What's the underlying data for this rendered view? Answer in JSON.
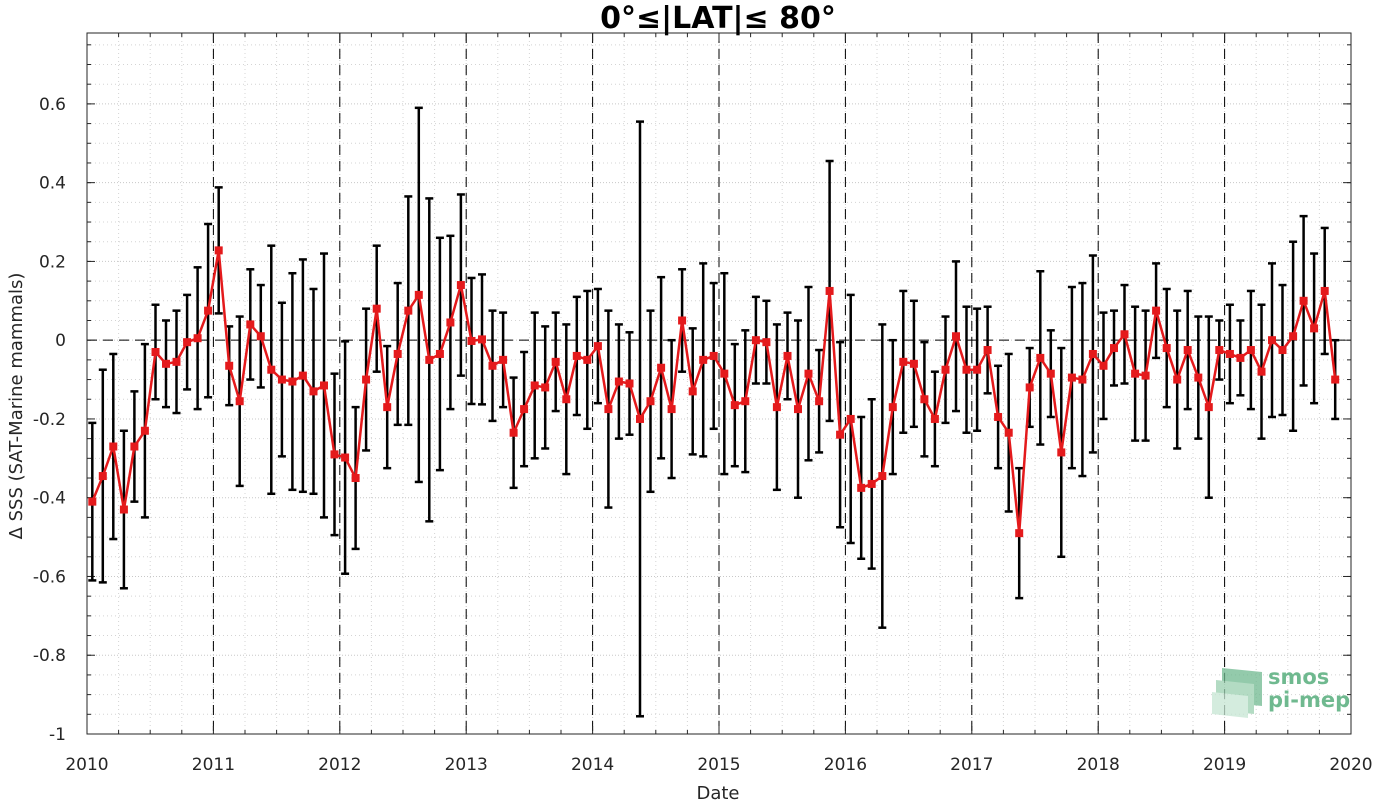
{
  "chart_data": {
    "type": "line",
    "title": "0°≤|LAT|≤ 80°",
    "xlabel": "Date",
    "ylabel": "Δ SSS (SAT-Marine mammals)",
    "xlim": [
      2010,
      2020
    ],
    "ylim": [
      -1,
      0.78
    ],
    "x_ticks": [
      "2010",
      "2011",
      "2012",
      "2013",
      "2014",
      "2015",
      "2016",
      "2017",
      "2018",
      "2019",
      "2020"
    ],
    "y_ticks": [
      "0.6",
      "0.4",
      "0.2",
      "0",
      "-0.2",
      "-0.4",
      "-0.6",
      "-0.8",
      "-1"
    ],
    "grid": true,
    "year_separators": "dashed vertical lines at each year",
    "zero_line": "dashed horizontal line at 0",
    "series": [
      {
        "color": "#e41a1c",
        "marker": "square",
        "error_bar_color": "#000000",
        "x": [
          2010.042,
          2010.125,
          2010.208,
          2010.292,
          2010.375,
          2010.458,
          2010.542,
          2010.625,
          2010.708,
          2010.792,
          2010.875,
          2010.958,
          2011.042,
          2011.125,
          2011.208,
          2011.292,
          2011.375,
          2011.458,
          2011.542,
          2011.625,
          2011.708,
          2011.792,
          2011.875,
          2011.958,
          2012.042,
          2012.125,
          2012.208,
          2012.292,
          2012.375,
          2012.458,
          2012.542,
          2012.625,
          2012.708,
          2012.792,
          2012.875,
          2012.958,
          2013.042,
          2013.125,
          2013.208,
          2013.292,
          2013.375,
          2013.458,
          2013.542,
          2013.625,
          2013.708,
          2013.792,
          2013.875,
          2013.958,
          2014.042,
          2014.125,
          2014.208,
          2014.292,
          2014.375,
          2014.458,
          2014.542,
          2014.625,
          2014.708,
          2014.792,
          2014.875,
          2014.958,
          2015.042,
          2015.125,
          2015.208,
          2015.292,
          2015.375,
          2015.458,
          2015.542,
          2015.625,
          2015.708,
          2015.792,
          2015.875,
          2015.958,
          2016.042,
          2016.125,
          2016.208,
          2016.292,
          2016.375,
          2016.458,
          2016.542,
          2016.625,
          2016.708,
          2016.792,
          2016.875,
          2016.958,
          2017.042,
          2017.125,
          2017.208,
          2017.292,
          2017.375,
          2017.458,
          2017.542,
          2017.625,
          2017.708,
          2017.792,
          2017.875,
          2017.958,
          2018.042,
          2018.125,
          2018.208,
          2018.292,
          2018.375,
          2018.458,
          2018.542,
          2018.625,
          2018.708,
          2018.792,
          2018.875,
          2018.958,
          2019.042,
          2019.125,
          2019.208,
          2019.292,
          2019.375,
          2019.458,
          2019.542,
          2019.625,
          2019.708,
          2019.792,
          2019.875
        ],
        "y": [
          -0.41,
          -0.345,
          -0.27,
          -0.43,
          -0.27,
          -0.23,
          -0.03,
          -0.06,
          -0.055,
          -0.005,
          0.005,
          0.075,
          0.228,
          -0.065,
          -0.155,
          0.04,
          0.01,
          -0.075,
          -0.1,
          -0.105,
          -0.09,
          -0.13,
          -0.115,
          -0.29,
          -0.298,
          -0.35,
          -0.1,
          0.08,
          -0.17,
          -0.035,
          0.075,
          0.115,
          -0.05,
          -0.035,
          0.045,
          0.14,
          -0.002,
          0.002,
          -0.065,
          -0.05,
          -0.235,
          -0.175,
          -0.115,
          -0.12,
          -0.055,
          -0.15,
          -0.04,
          -0.05,
          -0.015,
          -0.175,
          -0.105,
          -0.11,
          -0.2,
          -0.155,
          -0.07,
          -0.175,
          0.05,
          -0.13,
          -0.05,
          -0.04,
          -0.085,
          -0.165,
          -0.155,
          0.0,
          -0.005,
          -0.17,
          -0.04,
          -0.175,
          -0.085,
          -0.155,
          0.125,
          -0.24,
          -0.2,
          -0.375,
          -0.365,
          -0.345,
          -0.17,
          -0.055,
          -0.06,
          -0.15,
          -0.2,
          -0.075,
          0.01,
          -0.075,
          -0.075,
          -0.025,
          -0.195,
          -0.235,
          -0.49,
          -0.12,
          -0.045,
          -0.085,
          -0.285,
          -0.095,
          -0.1,
          -0.035,
          -0.065,
          -0.02,
          0.015,
          -0.085,
          -0.09,
          0.075,
          -0.02,
          -0.1,
          -0.025,
          -0.095,
          -0.17,
          -0.025,
          -0.035,
          -0.045,
          -0.025,
          -0.08,
          0.0,
          -0.025,
          0.01,
          0.1,
          0.03,
          0.125,
          -0.1
        ],
        "error": [
          0.2,
          0.27,
          0.235,
          0.2,
          0.14,
          0.22,
          0.12,
          0.11,
          0.13,
          0.12,
          0.18,
          0.22,
          0.16,
          0.1,
          0.215,
          0.14,
          0.13,
          0.315,
          0.195,
          0.275,
          0.295,
          0.26,
          0.335,
          0.205,
          0.295,
          0.18,
          0.18,
          0.16,
          0.155,
          0.18,
          0.29,
          0.475,
          0.41,
          0.295,
          0.22,
          0.23,
          0.16,
          0.165,
          0.14,
          0.12,
          0.14,
          0.145,
          0.185,
          0.155,
          0.125,
          0.19,
          0.15,
          0.175,
          0.145,
          0.25,
          0.145,
          0.13,
          0.755,
          0.23,
          0.23,
          0.175,
          0.13,
          0.16,
          0.245,
          0.185,
          0.255,
          0.155,
          0.18,
          0.11,
          0.105,
          0.21,
          0.11,
          0.225,
          0.22,
          0.13,
          0.33,
          0.235,
          0.315,
          0.18,
          0.215,
          0.385,
          0.17,
          0.18,
          0.16,
          0.145,
          0.12,
          0.135,
          0.19,
          0.16,
          0.155,
          0.11,
          0.13,
          0.2,
          0.165,
          0.1,
          0.22,
          0.11,
          0.265,
          0.23,
          0.245,
          0.25,
          0.135,
          0.095,
          0.125,
          0.17,
          0.165,
          0.12,
          0.15,
          0.175,
          0.15,
          0.155,
          0.23,
          0.075,
          0.125,
          0.095,
          0.15,
          0.17,
          0.195,
          0.165,
          0.24,
          0.215,
          0.19,
          0.16,
          0.1
        ]
      }
    ]
  },
  "logo": {
    "line1": "smos",
    "line2": "pi-mep"
  }
}
